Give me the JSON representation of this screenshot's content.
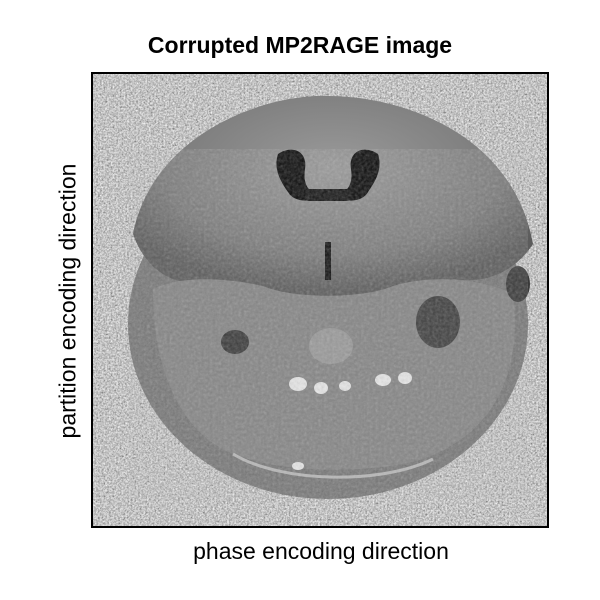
{
  "figure": {
    "title": "Corrupted MP2RAGE image",
    "xlabel": "phase encoding direction",
    "ylabel": "partition encoding direction"
  },
  "image": {
    "description_icon": "mri-brain-slice-image",
    "colormap": "grayscale",
    "colors": {
      "noise_dark": "#1a1a1a",
      "noise_light": "#e6e6e6",
      "tissue": "#8a8a8a",
      "ventricle": "#0a0a0a",
      "bright_spots": "#e8e8e8"
    }
  }
}
